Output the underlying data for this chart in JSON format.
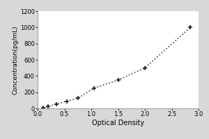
{
  "x_data": [
    0.1,
    0.2,
    0.35,
    0.55,
    0.75,
    1.05,
    1.5,
    2.0,
    2.85
  ],
  "y_data": [
    10,
    25,
    55,
    90,
    125,
    250,
    350,
    500,
    1000
  ],
  "xlabel": "Optical Density",
  "ylabel": "Concentration(pg/mL)",
  "xlim": [
    0,
    3.0
  ],
  "ylim": [
    0,
    1200
  ],
  "xticks": [
    0,
    0.5,
    1.0,
    1.5,
    2.0,
    2.5,
    3.0
  ],
  "yticks": [
    0,
    200,
    400,
    600,
    800,
    1000,
    1200
  ],
  "line_color": "#444444",
  "marker": "+",
  "marker_size": 5,
  "marker_color": "#222222",
  "line_style": ":",
  "line_width": 1.2,
  "background_color": "#d8d8d8",
  "plot_bg_color": "#ffffff",
  "xlabel_fontsize": 7,
  "ylabel_fontsize": 6.5,
  "tick_fontsize": 6
}
